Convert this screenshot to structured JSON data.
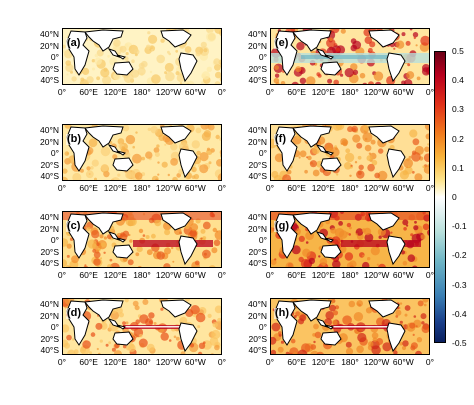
{
  "panels": [
    {
      "id": "a",
      "label": "(a)"
    },
    {
      "id": "b",
      "label": "(b)"
    },
    {
      "id": "c",
      "label": "(c)"
    },
    {
      "id": "d",
      "label": "(d)"
    },
    {
      "id": "e",
      "label": "(e)"
    },
    {
      "id": "f",
      "label": "(f)"
    },
    {
      "id": "g",
      "label": "(g)"
    },
    {
      "id": "h",
      "label": "(h)"
    }
  ],
  "axes": {
    "lat_ticks": [
      "40°N",
      "20°N",
      "0°",
      "20°S",
      "40°S"
    ],
    "lon_ticks": [
      "0°",
      "60°E",
      "120°E",
      "180°",
      "120°W",
      "60°W",
      "0°"
    ]
  },
  "colorbar": {
    "ticks": [
      "0.5",
      "0.4",
      "0.3",
      "0.2",
      "0.1",
      "0",
      "-0.1",
      "-0.2",
      "-0.3",
      "-0.4",
      "-0.5"
    ],
    "colors": {
      "max": "#6b0016",
      "high": "#e0301a",
      "mid_high": "#f8b23a",
      "zero": "#ffffff",
      "mid_low": "#6fb6c6",
      "min": "#0a1f5e"
    }
  }
}
